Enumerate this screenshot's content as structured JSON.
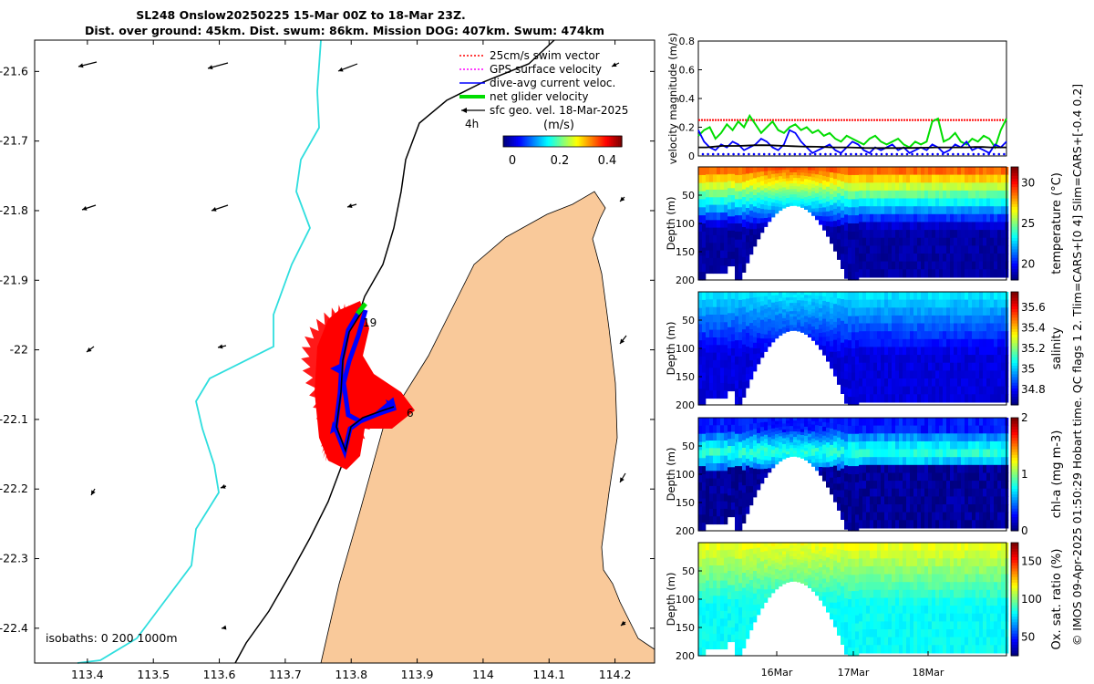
{
  "title": {
    "line1": "SL248 Onslow20250225 15-Mar 00Z to 18-Mar 23Z.",
    "line2": "Dist. over ground: 45km. Dist. swum: 86km. Mission DOG: 407km. Swum: 474km"
  },
  "colors": {
    "land": "#f9c99a",
    "isobath_0": "#000000",
    "isobath_200": "#2fdede",
    "swim_vector": "#ff0000",
    "gps_surface_velocity": "#ff00ff",
    "dive_avg_current": "#0000ff",
    "net_glider_velocity": "#00dd00",
    "sfc_geo_vel": "#000000"
  },
  "chart_data": [
    {
      "type": "map",
      "name": "glider-track-map",
      "xticks": [
        "113.4",
        "113.5",
        "113.6",
        "113.7",
        "113.8",
        "113.9",
        "114",
        "114.1",
        "114.2"
      ],
      "yticks": [
        "-21.6",
        "-21.7",
        "-21.8",
        "-21.9",
        "-22",
        "-22.1",
        "-22.2",
        "-22.3",
        "-22.4"
      ],
      "xlim": [
        113.32,
        114.26
      ],
      "ylim": [
        -22.45,
        -21.555
      ],
      "legend": {
        "items": [
          {
            "label": "25cm/s swim vector",
            "color": "#ff0000",
            "style": "dotted"
          },
          {
            "label": "GPS surface velocity",
            "color": "#ff00ff",
            "style": "dotted"
          },
          {
            "label": "dive-avg current veloc.",
            "color": "#0000ff",
            "style": "solid"
          },
          {
            "label": "net glider velocity",
            "color": "#00dd00",
            "style": "thick"
          },
          {
            "label": "sfc geo. vel. 18-Mar-2025",
            "color": "#000000",
            "style": "arrow"
          }
        ],
        "extra_label": "4h",
        "placement": "top-right"
      },
      "colorbar": {
        "label": "(m/s)",
        "ticks": [
          "0",
          "0.2",
          "0.4"
        ],
        "range": [
          0,
          0.5
        ],
        "colormap": "jet"
      },
      "track_labels": [
        "19",
        "6"
      ],
      "isobath_text": "isobaths: 0   200  1000m"
    },
    {
      "type": "line",
      "name": "velocity-magnitude",
      "ylabel": "velocity magnitude (m/s)",
      "ylim": [
        0,
        0.8
      ],
      "yticks": [
        "0",
        "0.2",
        "0.4",
        "0.6",
        "0.8"
      ],
      "series": [
        {
          "color": "#ff0000",
          "constant": 0.25
        },
        {
          "color": "#00dd00",
          "values": [
            0.14,
            0.18,
            0.2,
            0.12,
            0.16,
            0.22,
            0.18,
            0.24,
            0.2,
            0.28,
            0.22,
            0.16,
            0.2,
            0.24,
            0.18,
            0.16,
            0.2,
            0.22,
            0.18,
            0.2,
            0.16,
            0.18,
            0.14,
            0.16,
            0.12,
            0.1,
            0.14,
            0.12,
            0.1,
            0.08,
            0.12,
            0.14,
            0.1,
            0.08,
            0.1,
            0.12,
            0.08,
            0.06,
            0.1,
            0.08,
            0.1,
            0.24,
            0.26,
            0.1,
            0.12,
            0.16,
            0.1,
            0.08,
            0.12,
            0.1,
            0.14,
            0.12,
            0.06,
            0.18,
            0.26
          ]
        },
        {
          "color": "#0000ff",
          "values": [
            0.18,
            0.1,
            0.06,
            0.04,
            0.08,
            0.06,
            0.1,
            0.08,
            0.04,
            0.06,
            0.08,
            0.12,
            0.1,
            0.06,
            0.04,
            0.08,
            0.18,
            0.16,
            0.1,
            0.06,
            0.02,
            0.04,
            0.06,
            0.08,
            0.04,
            0.02,
            0.06,
            0.1,
            0.08,
            0.04,
            0.02,
            0.06,
            0.04,
            0.06,
            0.08,
            0.04,
            0.06,
            0.02,
            0.04,
            0.06,
            0.04,
            0.08,
            0.06,
            0.02,
            0.04,
            0.08,
            0.06,
            0.1,
            0.04,
            0.06,
            0.04,
            0.02,
            0.08,
            0.06,
            0.1
          ]
        },
        {
          "color": "#000000",
          "values": [
            0.06,
            0.06,
            0.065,
            0.07,
            0.07,
            0.07,
            0.072,
            0.074,
            0.075,
            0.074,
            0.072,
            0.07,
            0.068,
            0.066,
            0.065,
            0.064,
            0.062,
            0.06,
            0.06,
            0.06,
            0.058,
            0.056,
            0.055,
            0.055,
            0.055,
            0.055,
            0.056,
            0.056,
            0.057,
            0.058,
            0.06,
            0.06,
            0.06,
            0.06,
            0.06,
            0.062,
            0.062,
            0.06,
            0.06,
            0.06
          ]
        }
      ]
    },
    {
      "type": "heatmap",
      "name": "temperature-section",
      "ylabel": "Depth (m)",
      "yticks": [
        "50",
        "100",
        "150",
        "200"
      ],
      "ylim": [
        200,
        0
      ],
      "colorbar_label": "temperature (°C)",
      "colorbar_ticks": [
        "20",
        "25",
        "30"
      ],
      "crange": [
        18,
        32
      ],
      "surface_value": 29.5,
      "bottom_value": 18.5
    },
    {
      "type": "heatmap",
      "name": "salinity-section",
      "ylabel": "Depth (m)",
      "yticks": [
        "50",
        "100",
        "150",
        "200"
      ],
      "ylim": [
        200,
        0
      ],
      "colorbar_label": "salinity",
      "colorbar_ticks": [
        "34.8",
        "35",
        "35.2",
        "35.4",
        "35.6"
      ],
      "crange": [
        34.65,
        35.75
      ],
      "surface_value": 35.05,
      "bottom_value": 34.75
    },
    {
      "type": "heatmap",
      "name": "chla-section",
      "ylabel": "Depth (m)",
      "yticks": [
        "50",
        "100",
        "150",
        "200"
      ],
      "ylim": [
        200,
        0
      ],
      "colorbar_label": "chl-a (mg m-3)",
      "colorbar_ticks": [
        "0",
        "1",
        "2"
      ],
      "crange": [
        0,
        2
      ],
      "surface_value": 0.3,
      "max_value": 0.85,
      "bottom_value": 0.05
    },
    {
      "type": "heatmap",
      "name": "oxygen-section",
      "ylabel": "Depth (m)",
      "yticks": [
        "50",
        "100",
        "150",
        "200"
      ],
      "ylim": [
        200,
        0
      ],
      "colorbar_label": "Ox. sat. ratio (%)",
      "colorbar_ticks": [
        "50",
        "100",
        "150"
      ],
      "crange": [
        25,
        175
      ],
      "surface_value": 118,
      "bottom_value": 82
    }
  ],
  "time_axis": {
    "ticks": [
      "16Mar",
      "17Mar",
      "18Mar"
    ]
  },
  "side_note": "© IMOS 09-Apr-2025 01:50:29 Hobart time. QC flags 1  2. Tlim=CARS+[0 4] Slim=CARS+[-0.4 0.2]"
}
